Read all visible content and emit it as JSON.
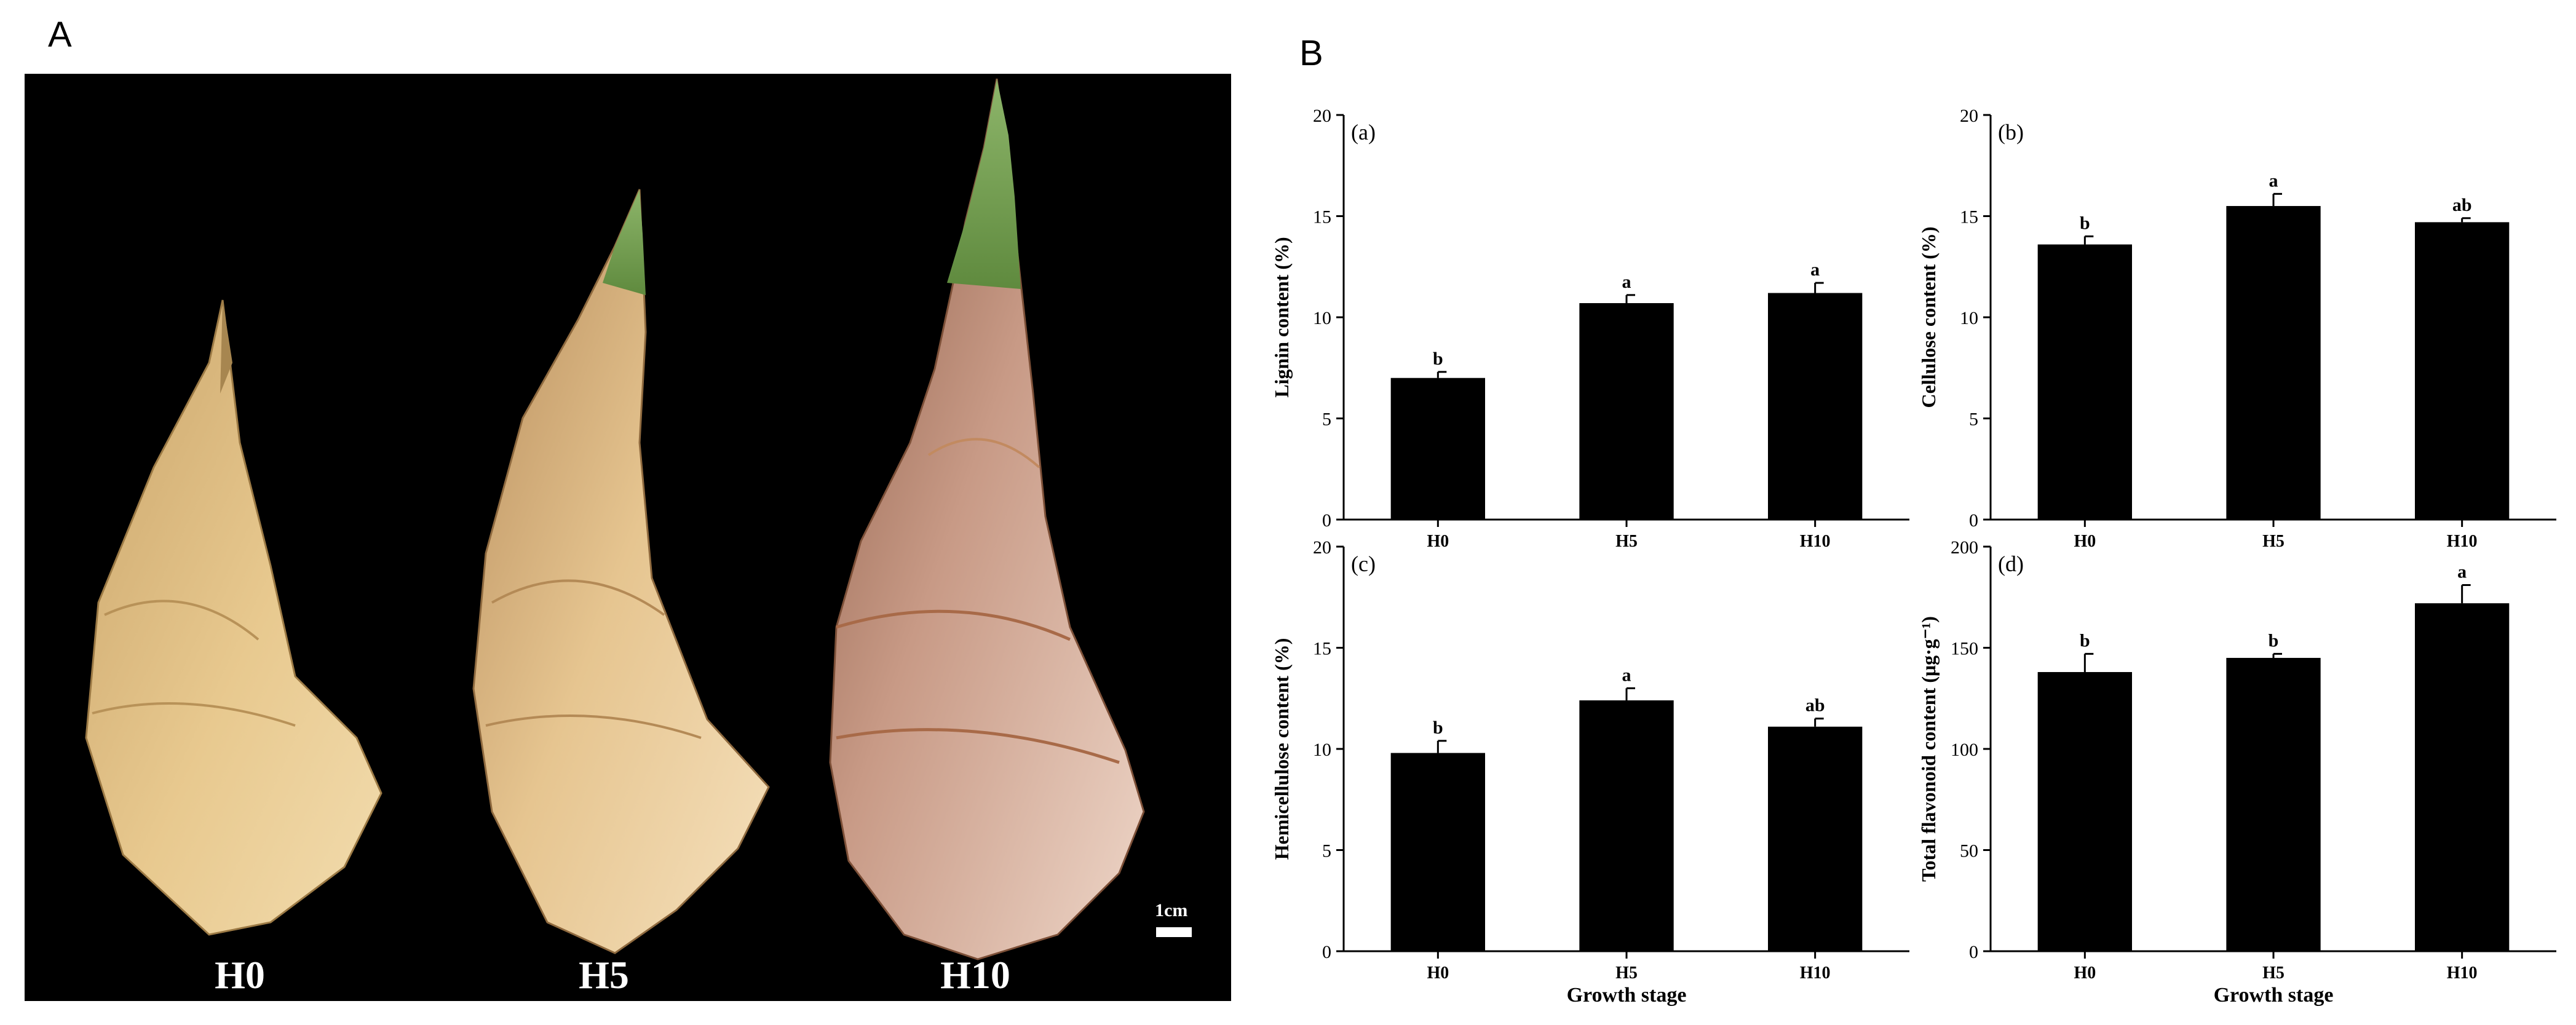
{
  "panel_a_label": "A",
  "panel_b_label": "B",
  "photo": {
    "labels": [
      "H0",
      "H5",
      "H10"
    ],
    "scale_label": "1cm"
  },
  "colors": {
    "bar": "#000000",
    "photo_background": "#000000"
  },
  "chart_data": [
    {
      "type": "bar",
      "panel": "(a)",
      "categories": [
        "H0",
        "H5",
        "H10"
      ],
      "values": [
        7.0,
        10.7,
        11.2
      ],
      "errors": [
        0.3,
        0.4,
        0.5
      ],
      "significance": [
        "b",
        "a",
        "a"
      ],
      "ylabel": "Lignin content (%)",
      "xlabel": "",
      "ylim": [
        0,
        20
      ],
      "yticks": [
        0,
        5,
        10,
        15,
        20
      ]
    },
    {
      "type": "bar",
      "panel": "(b)",
      "categories": [
        "H0",
        "H5",
        "H10"
      ],
      "values": [
        13.6,
        15.5,
        14.7
      ],
      "errors": [
        0.4,
        0.6,
        0.2
      ],
      "significance": [
        "b",
        "a",
        "ab"
      ],
      "ylabel": "Cellulose content (%)",
      "xlabel": "",
      "ylim": [
        0,
        20
      ],
      "yticks": [
        0,
        5,
        10,
        15,
        20
      ]
    },
    {
      "type": "bar",
      "panel": "(c)",
      "categories": [
        "H0",
        "H5",
        "H10"
      ],
      "values": [
        9.8,
        12.4,
        11.1
      ],
      "errors": [
        0.6,
        0.6,
        0.4
      ],
      "significance": [
        "b",
        "a",
        "ab"
      ],
      "ylabel": "Hemicellulose content (%)",
      "xlabel": "Growth stage",
      "ylim": [
        0,
        20
      ],
      "yticks": [
        0,
        5,
        10,
        15,
        20
      ]
    },
    {
      "type": "bar",
      "panel": "(d)",
      "categories": [
        "H0",
        "H5",
        "H10"
      ],
      "values": [
        138,
        145,
        172
      ],
      "errors": [
        9,
        2,
        9
      ],
      "significance": [
        "b",
        "b",
        "a"
      ],
      "ylabel": "Total flavonoid content (μg·g⁻¹)",
      "xlabel": "Growth stage",
      "ylim": [
        0,
        200
      ],
      "yticks": [
        0,
        50,
        100,
        150,
        200
      ]
    }
  ]
}
